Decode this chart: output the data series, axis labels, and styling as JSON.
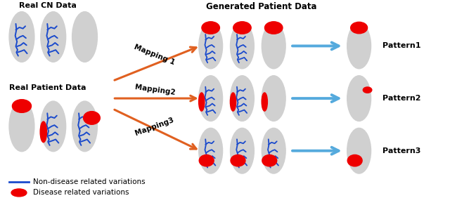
{
  "bg_color": "#ffffff",
  "gray_oval_color": "#d0d0d0",
  "brain_line_color": "#1a4acc",
  "disease_color": "#ee0000",
  "mapping_arrow_color": "#e06020",
  "nav_arrow_color": "#55aadd",
  "title_top": "Generated Patient Data",
  "label_cn": "Real CN Data",
  "label_patient": "Real Patient Data",
  "mapping1": "Mapping 1",
  "mapping2": "Mapping2",
  "mapping3": "Mapping3",
  "pattern1": "Pattern1",
  "pattern2": "Pattern2",
  "pattern3": "Pattern3",
  "legend_line": "Non-disease related variations",
  "legend_blob": "Disease related variations"
}
